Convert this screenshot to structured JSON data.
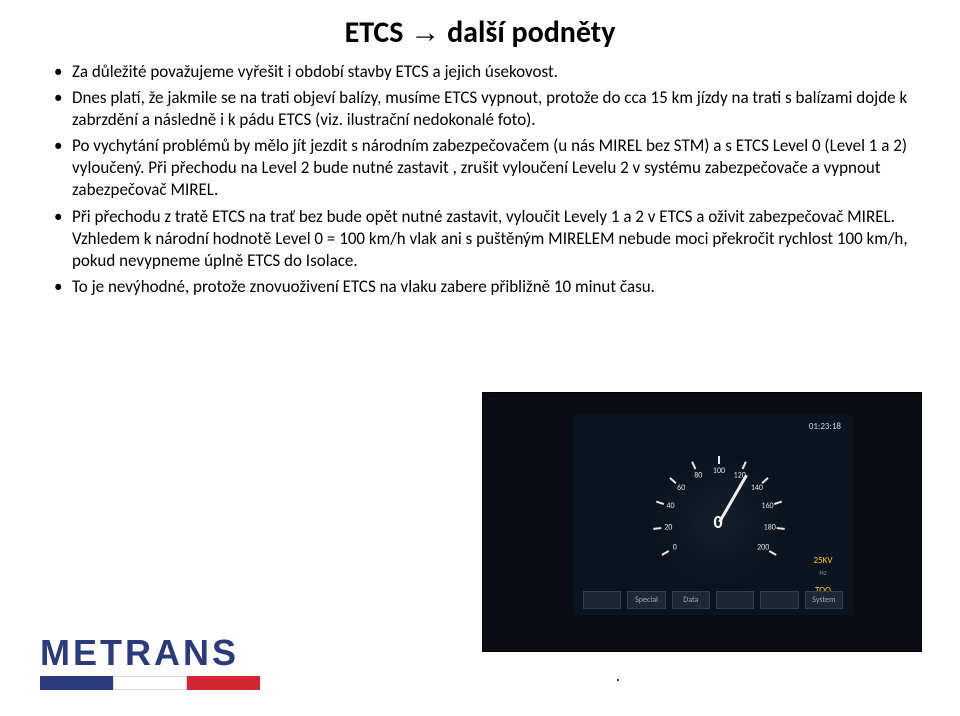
{
  "title": {
    "prefix": "ETCS",
    "arrow": "→",
    "suffix": "další podněty"
  },
  "bullets": [
    "Za důležité považujeme vyřešit i období stavby ETCS a jejich úsekovost.",
    "Dnes platí, že jakmile se na trati objeví balízy, musíme ETCS vypnout, protože do cca 15 km jízdy na trati s balízami dojde k zabrzdění a následně i k pádu ETCS (viz. ilustrační nedokonalé foto).",
    "Po vychytání problémů by mělo jít jezdit s národním zabezpečovačem (u nás MIREL bez STM) a s ETCS Level 0 (Level 1 a 2) vyloučený. Při přechodu na Level 2 bude nutné zastavit , zrušit vyloučení Levelu 2 v systému zabezpečovače a vypnout zabezpečovač MIREL.",
    "Při přechodu z tratě ETCS na trať bez bude opět nutné zastavit, vyloučit Levely 1 a 2 v ETCS a oživit zabezpečovač MIREL. Vzhledem k národní hodnotě Level 0 = 100 km/h vlak ani s puštěným MIRELEM nebude moci překročit rychlost 100 km/h, pokud nevypneme úplně ETCS do Isolace.",
    "To je nevýhodné, protože znovuoživení ETCS na vlaku zabere přibližně 10 minut času."
  ],
  "dashboard": {
    "clock": "01:23:18",
    "center_speed": "0",
    "tick_labels": [
      "0",
      "20",
      "40",
      "60",
      "80",
      "100",
      "120",
      "140",
      "160",
      "180",
      "200"
    ],
    "overspeed_val": "25KV",
    "overspeed_lbl": "Hz",
    "mode_val": "TOO",
    "buttons": [
      "",
      "Special",
      "Data",
      "",
      "",
      "System"
    ]
  },
  "logo": {
    "text": "METRANS",
    "bar_colors": [
      "#2a3a7a",
      "#ffffff",
      "#d22630"
    ]
  },
  "colors": {
    "title": "#000000",
    "text": "#000000",
    "dash_bg": "#0a0e14",
    "dash_panel": "#0a1420",
    "needle": "#eeeeee",
    "speed_text": "#ffffff"
  }
}
